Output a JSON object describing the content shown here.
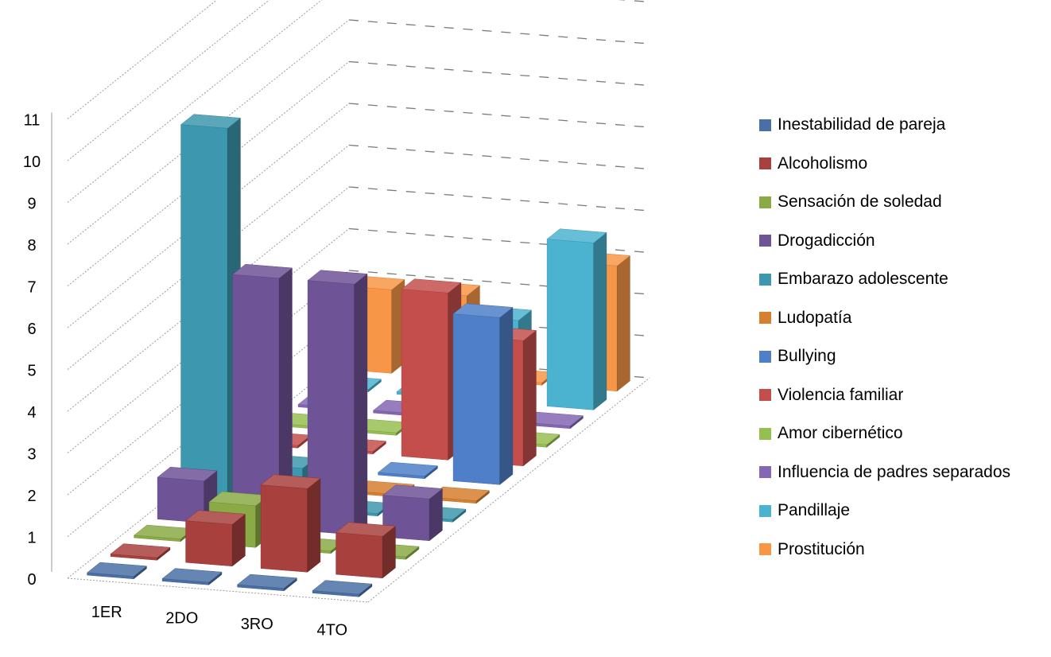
{
  "chart_data": {
    "type": "bar",
    "subtype": "3d-column",
    "title": "",
    "xlabel": "",
    "ylabel": "",
    "categories": [
      "1ER",
      "2DO",
      "3RO",
      "4TO"
    ],
    "y_ticks": [
      "0",
      "1",
      "2",
      "3",
      "4",
      "5",
      "6",
      "7",
      "8",
      "9",
      "10",
      "11"
    ],
    "ylim": [
      0,
      11
    ],
    "grid": true,
    "legend_position": "right",
    "series": [
      {
        "name": "Inestabilidad de pareja",
        "color": "#4A6FA5",
        "values": [
          0,
          0,
          0,
          0
        ]
      },
      {
        "name": "Alcoholismo",
        "color": "#A8403D",
        "values": [
          0,
          1,
          2,
          1
        ]
      },
      {
        "name": "Sensación de soledad",
        "color": "#8AAA45",
        "values": [
          0,
          1,
          0,
          0
        ]
      },
      {
        "name": "Drogadicción",
        "color": "#6E5396",
        "values": [
          1,
          6,
          6,
          1
        ]
      },
      {
        "name": "Embarazo adolescente",
        "color": "#3D97AE",
        "values": [
          9,
          1,
          0,
          0
        ]
      },
      {
        "name": "Ludopatía",
        "color": "#D67F2F",
        "values": [
          0,
          0,
          0,
          0
        ]
      },
      {
        "name": "Bullying",
        "color": "#4F7FC8",
        "values": [
          0,
          0,
          0,
          4
        ]
      },
      {
        "name": "Violencia familiar",
        "color": "#C44E4B",
        "values": [
          0,
          0,
          4,
          3
        ]
      },
      {
        "name": "Amor cibernético",
        "color": "#97BE51",
        "values": [
          0,
          0,
          0,
          0
        ]
      },
      {
        "name": "Influencia de padres separados",
        "color": "#8466B2",
        "values": [
          0,
          0,
          1,
          0
        ]
      },
      {
        "name": "Pandillaje",
        "color": "#4BB2D0",
        "values": [
          0,
          0,
          2,
          4
        ]
      },
      {
        "name": "Prostitución",
        "color": "#F79646",
        "values": [
          2,
          2,
          0,
          3
        ]
      }
    ]
  }
}
